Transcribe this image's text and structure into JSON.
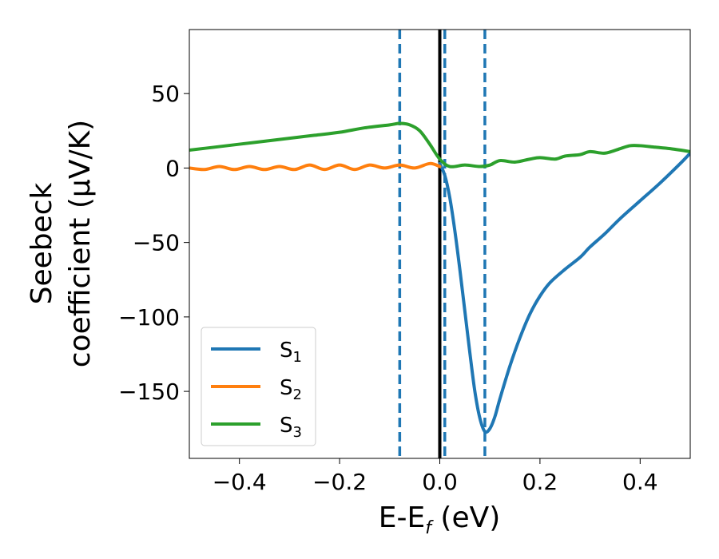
{
  "chart_data": {
    "type": "line",
    "xlabel": "E-E",
    "xlabel_sub": "f",
    "xlabel_unit": " (eV)",
    "ylabel_line1": "Seebeck",
    "ylabel_line2": "coefficient  (μV/K)",
    "xlim": [
      -0.5,
      0.5
    ],
    "ylim": [
      -195,
      93
    ],
    "x_ticks": [
      -0.4,
      -0.2,
      0.0,
      0.2,
      0.4
    ],
    "x_tick_labels": [
      "−0.4",
      "−0.2",
      "0.0",
      "0.2",
      "0.4"
    ],
    "y_ticks": [
      50,
      0,
      -50,
      -100,
      -150
    ],
    "y_tick_labels": [
      "50",
      "0",
      "−50",
      "−100",
      "−150"
    ],
    "grid": false,
    "legend_position": "bottom-left",
    "vertical_lines": [
      {
        "x": -0.08,
        "style": "dashed",
        "color": "#1f77b4"
      },
      {
        "x": 0.0,
        "style": "solid",
        "color": "#000000"
      },
      {
        "x": 0.01,
        "style": "dashed",
        "color": "#1f77b4"
      },
      {
        "x": 0.09,
        "style": "dashed",
        "color": "#1f77b4"
      }
    ],
    "series": [
      {
        "name": "S",
        "sub": "1",
        "color": "#1f77b4",
        "x": [
          0.0,
          0.01,
          0.02,
          0.03,
          0.04,
          0.05,
          0.06,
          0.07,
          0.08,
          0.09,
          0.1,
          0.11,
          0.12,
          0.14,
          0.16,
          0.18,
          0.2,
          0.22,
          0.25,
          0.28,
          0.3,
          0.33,
          0.36,
          0.4,
          0.44,
          0.48,
          0.5
        ],
        "y": [
          3,
          -5,
          -20,
          -42,
          -68,
          -96,
          -124,
          -150,
          -168,
          -177,
          -175,
          -167,
          -155,
          -133,
          -114,
          -98,
          -86,
          -77,
          -68,
          -60,
          -53,
          -44,
          -34,
          -22,
          -10,
          3,
          10
        ]
      },
      {
        "name": "S",
        "sub": "2",
        "color": "#ff7f0e",
        "x": [
          -0.5,
          -0.47,
          -0.44,
          -0.41,
          -0.38,
          -0.35,
          -0.32,
          -0.29,
          -0.26,
          -0.23,
          -0.2,
          -0.17,
          -0.14,
          -0.11,
          -0.08,
          -0.05,
          -0.02,
          0.0
        ],
        "y": [
          0,
          -1,
          1,
          -1,
          1,
          -1,
          1,
          -1,
          2,
          -1,
          2,
          -1,
          2,
          0,
          2,
          0,
          3,
          1
        ]
      },
      {
        "name": "S",
        "sub": "3",
        "color": "#2ca02c",
        "x": [
          -0.5,
          -0.45,
          -0.4,
          -0.35,
          -0.3,
          -0.25,
          -0.2,
          -0.15,
          -0.1,
          -0.08,
          -0.06,
          -0.04,
          -0.02,
          0.0,
          0.02,
          0.05,
          0.08,
          0.1,
          0.12,
          0.15,
          0.18,
          0.2,
          0.23,
          0.25,
          0.28,
          0.3,
          0.33,
          0.36,
          0.38,
          0.4,
          0.43,
          0.46,
          0.5
        ],
        "y": [
          12,
          14,
          16,
          18,
          20,
          22,
          24,
          27,
          29,
          30,
          29,
          25,
          16,
          6,
          1,
          2,
          1,
          2,
          5,
          4,
          6,
          7,
          6,
          8,
          9,
          11,
          10,
          13,
          15,
          15,
          14,
          13,
          11
        ]
      }
    ]
  }
}
